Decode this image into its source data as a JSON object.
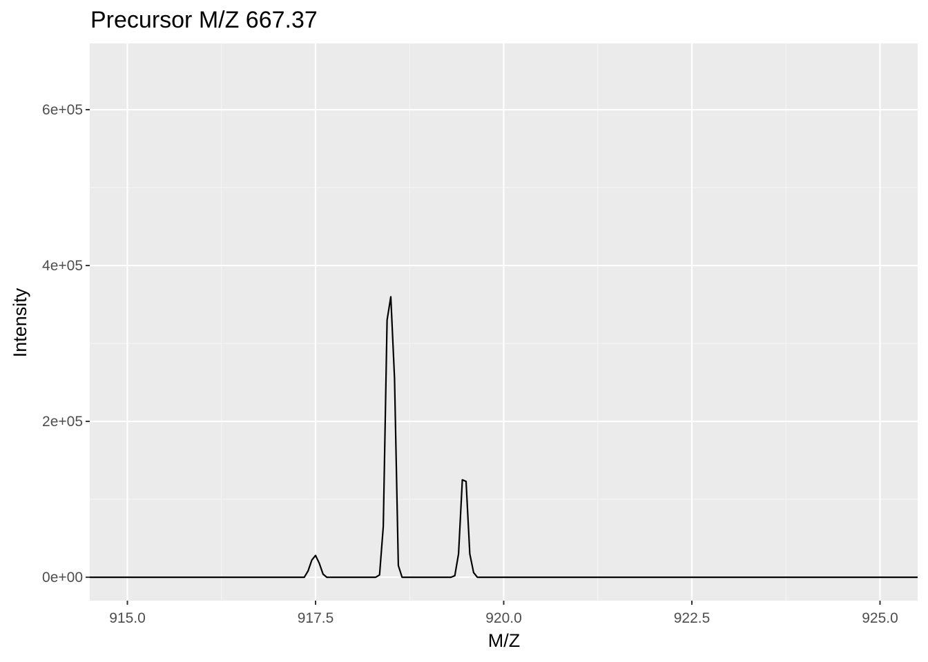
{
  "colors": {
    "panel_background": "#ebebeb",
    "grid_major": "#ffffff",
    "grid_minor": "#f5f5f5",
    "line": "#000000",
    "tick_text": "#4d4d4d",
    "tick_mark": "#333333"
  },
  "chart_data": {
    "type": "line",
    "title": "Precursor M/Z 667.37",
    "xlabel": "M/Z",
    "ylabel": "Intensity",
    "xlim": [
      914.5,
      925.5
    ],
    "ylim": [
      -30000,
      685000
    ],
    "x_ticks": [
      915.0,
      917.5,
      920.0,
      922.5,
      925.0
    ],
    "x_tick_labels": [
      "915.0",
      "917.5",
      "920.0",
      "922.5",
      "925.0"
    ],
    "y_ticks": [
      0,
      200000,
      400000,
      600000
    ],
    "y_tick_labels": [
      "0e+00",
      "2e+05",
      "4e+05",
      "6e+05"
    ],
    "grid": true,
    "legend": "none",
    "series": [
      {
        "x": [
          914.5,
          917.35,
          917.4,
          917.45,
          917.5,
          917.55,
          917.6,
          917.65,
          917.7,
          918.3,
          918.35,
          918.4,
          918.45,
          918.5,
          918.55,
          918.6,
          918.65,
          918.7,
          919.3,
          919.35,
          919.4,
          919.45,
          919.5,
          919.55,
          919.6,
          919.65,
          919.7,
          925.5
        ],
        "y": [
          0,
          0,
          8000,
          22000,
          28000,
          18000,
          4000,
          0,
          0,
          0,
          3000,
          65000,
          330000,
          360000,
          255000,
          15000,
          0,
          0,
          0,
          2000,
          30000,
          125000,
          123000,
          30000,
          6000,
          0,
          0,
          0
        ]
      }
    ]
  }
}
